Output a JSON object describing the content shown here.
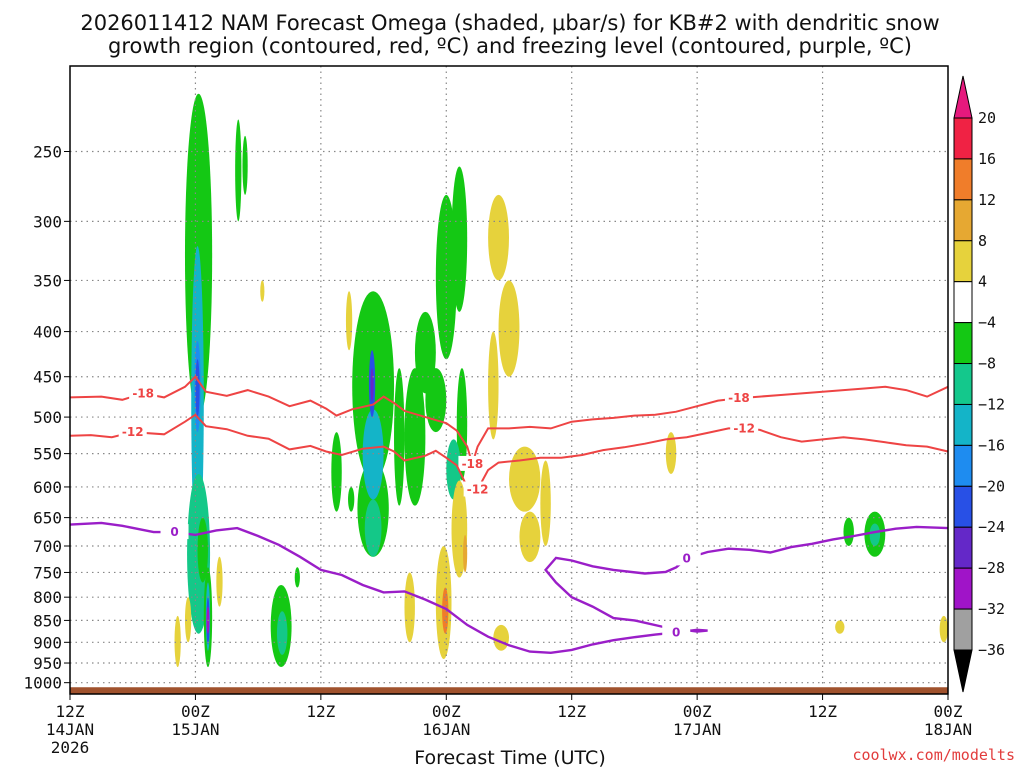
{
  "chart_data": {
    "type": "heatmap",
    "title_line1": "2026011412 NAM Forecast Omega (shaded, μbar/s) for KB#2 with dendritic snow",
    "title_line2": "growth region (contoured, red, ºC) and freezing level (contoured, purple, ºC)",
    "xlabel": "Forecast Time (UTC)",
    "x_ticks": [
      {
        "hour": 0,
        "line1": "12Z",
        "line2": "14JAN",
        "line3": "2026"
      },
      {
        "hour": 12,
        "line1": "00Z",
        "line2": "15JAN",
        "line3": ""
      },
      {
        "hour": 24,
        "line1": "12Z",
        "line2": "",
        "line3": ""
      },
      {
        "hour": 36,
        "line1": "00Z",
        "line2": "16JAN",
        "line3": ""
      },
      {
        "hour": 48,
        "line1": "12Z",
        "line2": "",
        "line3": ""
      },
      {
        "hour": 60,
        "line1": "00Z",
        "line2": "17JAN",
        "line3": ""
      },
      {
        "hour": 72,
        "line1": "12Z",
        "line2": "",
        "line3": ""
      },
      {
        "hour": 84,
        "line1": "00Z",
        "line2": "18JAN",
        "line3": ""
      }
    ],
    "xlim": [
      0,
      84
    ],
    "y_levels": [
      "250",
      "300",
      "350",
      "400",
      "450",
      "500",
      "550",
      "600",
      "650",
      "700",
      "750",
      "800",
      "850",
      "900",
      "950",
      "1000"
    ],
    "ylim_hpa": [
      200,
      1030
    ],
    "colorbar": {
      "labels": [
        "20",
        "16",
        "12",
        "8",
        "4",
        "−4",
        "−8",
        "−12",
        "−16",
        "−20",
        "−24",
        "−28",
        "−32",
        "−36"
      ],
      "colors": [
        "#f02244",
        "#f07d2a",
        "#e6a832",
        "#e6d23c",
        "#ffffff",
        "#14c814",
        "#14c88c",
        "#14b4c8",
        "#1e8cf0",
        "#2850e6",
        "#6428c8",
        "#a014c8",
        "#a0a0a0"
      ],
      "top_color": "#e6197d",
      "bottom_color": "#000000"
    },
    "contours": {
      "dgz_minus18": {
        "label": "-18",
        "color": "#ee4444",
        "points": [
          [
            0,
            475
          ],
          [
            3,
            474
          ],
          [
            5,
            478
          ],
          [
            7,
            470
          ],
          [
            9,
            475
          ],
          [
            11,
            462
          ],
          [
            12,
            450
          ],
          [
            13,
            468
          ],
          [
            15,
            473
          ],
          [
            17,
            466
          ],
          [
            19,
            474
          ],
          [
            21,
            486
          ],
          [
            23,
            479
          ],
          [
            24.5,
            489
          ],
          [
            25.5,
            498
          ],
          [
            27,
            490
          ],
          [
            29,
            484
          ],
          [
            30,
            474
          ],
          [
            31,
            482
          ],
          [
            32,
            492
          ],
          [
            34,
            500
          ],
          [
            36,
            508
          ],
          [
            37,
            518
          ],
          [
            38,
            540
          ],
          [
            38.5,
            565
          ],
          [
            39,
            540
          ],
          [
            40,
            515
          ],
          [
            42,
            515
          ],
          [
            44,
            513
          ],
          [
            46,
            515
          ],
          [
            48,
            506
          ],
          [
            50,
            503
          ],
          [
            52,
            501
          ],
          [
            54,
            498
          ],
          [
            56,
            497
          ],
          [
            58,
            493
          ],
          [
            60,
            486
          ],
          [
            62,
            479
          ],
          [
            64,
            476
          ],
          [
            66,
            474
          ],
          [
            68,
            472
          ],
          [
            70,
            470
          ],
          [
            72,
            468
          ],
          [
            74,
            466
          ],
          [
            76,
            464
          ],
          [
            78,
            462
          ],
          [
            80,
            466
          ],
          [
            82,
            474
          ],
          [
            84,
            462
          ]
        ]
      },
      "dgz_minus12": {
        "label": "-12",
        "color": "#ee4444",
        "points": [
          [
            0,
            525
          ],
          [
            2,
            524
          ],
          [
            4,
            527
          ],
          [
            6,
            520
          ],
          [
            9,
            523
          ],
          [
            11,
            506
          ],
          [
            12,
            497
          ],
          [
            13,
            512
          ],
          [
            15,
            516
          ],
          [
            17,
            525
          ],
          [
            19,
            529
          ],
          [
            21,
            544
          ],
          [
            23,
            539
          ],
          [
            24.5,
            547
          ],
          [
            26,
            552
          ],
          [
            28,
            543
          ],
          [
            30,
            540
          ],
          [
            31,
            547
          ],
          [
            32,
            560
          ],
          [
            34,
            553
          ],
          [
            35,
            546
          ],
          [
            36,
            556
          ],
          [
            37,
            567
          ],
          [
            38,
            600
          ],
          [
            39,
            604
          ],
          [
            40,
            574
          ],
          [
            41,
            563
          ],
          [
            43,
            560
          ],
          [
            45,
            556
          ],
          [
            47,
            556
          ],
          [
            49,
            552
          ],
          [
            51,
            545
          ],
          [
            53,
            541
          ],
          [
            55,
            536
          ],
          [
            57,
            530
          ],
          [
            59,
            527
          ],
          [
            61,
            521
          ],
          [
            63,
            515
          ],
          [
            64.5,
            515
          ],
          [
            66,
            517
          ],
          [
            68,
            527
          ],
          [
            70,
            533
          ],
          [
            72,
            530
          ],
          [
            74,
            527
          ],
          [
            76,
            530
          ],
          [
            78,
            534
          ],
          [
            80,
            538
          ],
          [
            82,
            540
          ],
          [
            84,
            547
          ]
        ]
      },
      "freezing_level": {
        "label": "0",
        "color": "#9a1ec8",
        "points": [
          [
            0,
            662
          ],
          [
            3,
            659
          ],
          [
            5,
            664
          ],
          [
            8,
            675
          ],
          [
            10,
            675
          ],
          [
            12,
            680
          ],
          [
            14,
            672
          ],
          [
            16,
            668
          ],
          [
            18,
            682
          ],
          [
            20,
            698
          ],
          [
            22,
            720
          ],
          [
            24,
            745
          ],
          [
            26,
            755
          ],
          [
            28,
            775
          ],
          [
            30,
            790
          ],
          [
            32,
            788
          ],
          [
            34,
            805
          ],
          [
            36,
            825
          ],
          [
            38,
            860
          ],
          [
            40,
            887
          ],
          [
            42,
            907
          ],
          [
            44,
            922
          ],
          [
            46,
            925
          ],
          [
            48,
            918
          ],
          [
            50,
            905
          ],
          [
            52,
            895
          ],
          [
            54,
            888
          ],
          [
            56,
            882
          ],
          [
            58,
            877
          ],
          [
            60,
            871
          ],
          [
            61,
            873
          ],
          [
            60,
            875
          ],
          [
            57,
            866
          ],
          [
            54,
            850
          ],
          [
            52,
            845
          ],
          [
            50,
            820
          ],
          [
            48,
            800
          ],
          [
            46.5,
            770
          ],
          [
            45.5,
            745
          ],
          [
            46.5,
            722
          ],
          [
            48,
            727
          ],
          [
            50,
            738
          ],
          [
            52,
            745
          ],
          [
            55,
            752
          ],
          [
            57,
            749
          ],
          [
            58,
            740
          ],
          [
            59,
            723
          ],
          [
            61,
            711
          ],
          [
            63,
            705
          ],
          [
            65,
            707
          ],
          [
            67,
            712
          ],
          [
            69,
            702
          ],
          [
            71,
            696
          ],
          [
            73,
            688
          ],
          [
            75,
            682
          ],
          [
            77,
            675
          ],
          [
            79,
            669
          ],
          [
            81,
            666
          ],
          [
            84,
            668
          ]
        ]
      }
    },
    "shaded_cells": [
      [
        11,
        13.6,
        215,
        500,
        "#14c814"
      ],
      [
        11.6,
        12.8,
        320,
        720,
        "#14b4c8"
      ],
      [
        11.9,
        12.5,
        410,
        520,
        "#1e8cf0"
      ],
      [
        12,
        12.4,
        430,
        500,
        "#2850e6"
      ],
      [
        11.2,
        13.4,
        580,
        880,
        "#14c888"
      ],
      [
        12.2,
        13.2,
        650,
        770,
        "#14c814"
      ],
      [
        12.8,
        13.6,
        740,
        960,
        "#14c814"
      ],
      [
        13,
        13.4,
        770,
        920,
        "#14b4c8"
      ],
      [
        13.05,
        13.35,
        800,
        905,
        "#2850e6"
      ],
      [
        13.12,
        13.28,
        820,
        880,
        "#a014c8"
      ],
      [
        10,
        10.6,
        840,
        960,
        "#e6d23c"
      ],
      [
        11,
        11.6,
        800,
        900,
        "#e6d23c"
      ],
      [
        14,
        14.6,
        720,
        820,
        "#e6d23c"
      ],
      [
        15.8,
        16.4,
        230,
        300,
        "#14c814"
      ],
      [
        16.5,
        17,
        240,
        280,
        "#14c814"
      ],
      [
        18.2,
        18.6,
        350,
        370,
        "#e6d23c"
      ],
      [
        19.2,
        21.2,
        775,
        960,
        "#14c814"
      ],
      [
        19.8,
        20.8,
        830,
        930,
        "#14c888"
      ],
      [
        21.5,
        22,
        740,
        780,
        "#14c814"
      ],
      [
        25,
        26,
        520,
        640,
        "#14c814"
      ],
      [
        27,
        31,
        360,
        590,
        "#14c814"
      ],
      [
        27.5,
        30.5,
        560,
        720,
        "#14c814"
      ],
      [
        28,
        30,
        490,
        620,
        "#14b4c8"
      ],
      [
        28.2,
        29.8,
        620,
        720,
        "#14c888"
      ],
      [
        28.6,
        29.2,
        420,
        500,
        "#2850e6"
      ],
      [
        28.8,
        29,
        440,
        480,
        "#6428c8"
      ],
      [
        26.4,
        27,
        360,
        420,
        "#e6d23c"
      ],
      [
        26.6,
        27.2,
        600,
        640,
        "#14c814"
      ],
      [
        31,
        32,
        440,
        630,
        "#14c814"
      ],
      [
        32,
        34,
        440,
        630,
        "#14c814"
      ],
      [
        33,
        35,
        380,
        470,
        "#14c814"
      ],
      [
        34,
        36,
        440,
        520,
        "#14c814"
      ],
      [
        35,
        37,
        280,
        430,
        "#14c814"
      ],
      [
        36.5,
        38,
        260,
        380,
        "#14c814"
      ],
      [
        37,
        38,
        440,
        590,
        "#14c814"
      ],
      [
        36,
        37.4,
        530,
        620,
        "#14c888"
      ],
      [
        32,
        33,
        750,
        900,
        "#e6d23c"
      ],
      [
        35,
        36.5,
        700,
        940,
        "#e6d23c"
      ],
      [
        35.6,
        36.2,
        780,
        880,
        "#f07d2a"
      ],
      [
        36.5,
        38,
        590,
        760,
        "#e6d23c"
      ],
      [
        37.6,
        38,
        680,
        750,
        "#e6a832"
      ],
      [
        40.5,
        42,
        860,
        920,
        "#e6d23c"
      ],
      [
        40,
        41,
        400,
        530,
        "#e6d23c"
      ],
      [
        41,
        43,
        350,
        450,
        "#e6d23c"
      ],
      [
        40,
        42,
        280,
        350,
        "#e6d23c"
      ],
      [
        42,
        45,
        540,
        640,
        "#e6d23c"
      ],
      [
        43,
        45,
        640,
        730,
        "#e6d23c"
      ],
      [
        45,
        46,
        560,
        700,
        "#e6d23c"
      ],
      [
        57,
        58,
        520,
        580,
        "#e6d23c"
      ],
      [
        74,
        75,
        650,
        700,
        "#14c814"
      ],
      [
        76,
        78,
        640,
        720,
        "#14c814"
      ],
      [
        76.5,
        77.5,
        660,
        700,
        "#14c888"
      ],
      [
        73.2,
        74.1,
        850,
        880,
        "#e6d23c"
      ],
      [
        83.2,
        84,
        840,
        900,
        "#e6d23c"
      ]
    ],
    "terrain": {
      "color": "#a0522d",
      "top_hpa": 1012,
      "bottom_hpa": 1030
    },
    "credit": "coolwx.com/modelts"
  }
}
